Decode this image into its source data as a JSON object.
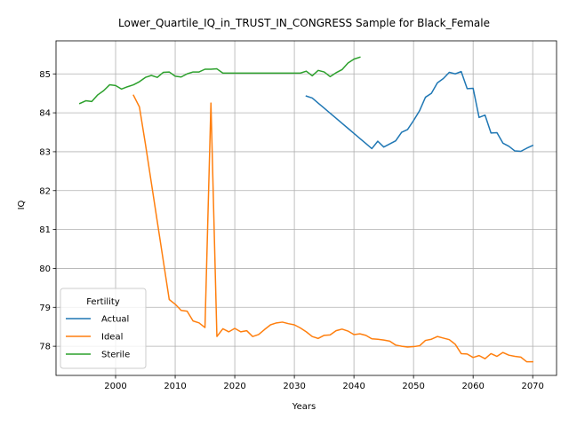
{
  "chart_data": {
    "type": "line",
    "title": "Lower_Quartile_IQ_in_TRUST_IN_CONGRESS Sample for Black_Female",
    "xlabel": "Years",
    "ylabel": "IQ",
    "xlim": [
      1990,
      2074
    ],
    "ylim": [
      77.25,
      85.85
    ],
    "xticks": [
      2000,
      2010,
      2020,
      2030,
      2040,
      2050,
      2060,
      2070
    ],
    "yticks": [
      78,
      79,
      80,
      81,
      82,
      83,
      84,
      85
    ],
    "grid": true,
    "legend": {
      "title": "Fertility",
      "placement": "lower-left"
    },
    "series": [
      {
        "name": "Actual",
        "color": "#1f77b4",
        "x": [
          2032,
          2033,
          2034,
          2035,
          2036,
          2037,
          2038,
          2039,
          2040,
          2041,
          2042,
          2043,
          2044,
          2045,
          2046,
          2047,
          2048,
          2049,
          2050,
          2051,
          2052,
          2053,
          2054,
          2055,
          2056,
          2057,
          2058,
          2059,
          2060,
          2061,
          2062,
          2063,
          2064,
          2065,
          2066,
          2067,
          2068,
          2069,
          2070
        ],
        "y": [
          84.43,
          84.38,
          84.25,
          84.12,
          83.99,
          83.86,
          83.73,
          83.6,
          83.47,
          83.34,
          83.21,
          83.08,
          83.27,
          83.12,
          83.2,
          83.28,
          83.5,
          83.57,
          83.8,
          84.05,
          84.4,
          84.5,
          84.77,
          84.88,
          85.04,
          85.0,
          85.06,
          84.62,
          84.63,
          83.88,
          83.94,
          83.48,
          83.49,
          83.22,
          83.14,
          83.02,
          83.01,
          83.09,
          83.16
        ]
      },
      {
        "name": "Ideal",
        "color": "#ff7f0e",
        "x": [
          2003,
          2004,
          2005,
          2006,
          2007,
          2008,
          2009,
          2010,
          2011,
          2012,
          2013,
          2014,
          2015,
          2016,
          2017,
          2018,
          2019,
          2020,
          2021,
          2022,
          2023,
          2024,
          2025,
          2026,
          2027,
          2028,
          2029,
          2030,
          2031,
          2032,
          2033,
          2034,
          2035,
          2036,
          2037,
          2038,
          2039,
          2040,
          2041,
          2042,
          2043,
          2044,
          2045,
          2046,
          2047,
          2048,
          2049,
          2050,
          2051,
          2052,
          2053,
          2054,
          2055,
          2056,
          2057,
          2058,
          2059,
          2060,
          2061,
          2062,
          2063,
          2064,
          2065,
          2066,
          2067,
          2068,
          2069,
          2070
        ],
        "y": [
          84.45,
          84.15,
          83.2,
          82.2,
          81.2,
          80.2,
          79.2,
          79.08,
          78.92,
          78.9,
          78.65,
          78.6,
          78.48,
          84.25,
          78.25,
          78.45,
          78.37,
          78.46,
          78.37,
          78.4,
          78.25,
          78.3,
          78.43,
          78.55,
          78.6,
          78.62,
          78.58,
          78.55,
          78.47,
          78.37,
          78.25,
          78.2,
          78.28,
          78.29,
          78.4,
          78.44,
          78.39,
          78.3,
          78.32,
          78.28,
          78.19,
          78.18,
          78.16,
          78.13,
          78.03,
          78.0,
          77.98,
          77.99,
          78.01,
          78.15,
          78.18,
          78.25,
          78.21,
          78.17,
          78.05,
          77.81,
          77.8,
          77.71,
          77.76,
          77.68,
          77.81,
          77.74,
          77.84,
          77.77,
          77.74,
          77.72,
          77.6,
          77.6
        ]
      },
      {
        "name": "Sterile",
        "color": "#2ca02c",
        "x": [
          1994,
          1995,
          1996,
          1997,
          1998,
          1999,
          2000,
          2001,
          2002,
          2003,
          2004,
          2005,
          2006,
          2007,
          2008,
          2009,
          2010,
          2011,
          2012,
          2013,
          2014,
          2015,
          2016,
          2017,
          2018,
          2019,
          2020,
          2021,
          2022,
          2023,
          2024,
          2025,
          2026,
          2027,
          2028,
          2029,
          2030,
          2031,
          2032,
          2033,
          2034,
          2035,
          2036,
          2037,
          2038,
          2039,
          2040,
          2041
        ],
        "y": [
          84.24,
          84.31,
          84.29,
          84.46,
          84.57,
          84.72,
          84.7,
          84.61,
          84.67,
          84.72,
          84.8,
          84.91,
          84.96,
          84.91,
          85.04,
          85.05,
          84.94,
          84.92,
          85.0,
          85.05,
          85.05,
          85.12,
          85.12,
          85.13,
          85.02,
          85.02,
          85.02,
          85.02,
          85.02,
          85.02,
          85.02,
          85.02,
          85.02,
          85.02,
          85.02,
          85.02,
          85.02,
          85.02,
          85.07,
          84.95,
          85.09,
          85.05,
          84.93,
          85.03,
          85.11,
          85.28,
          85.38,
          85.43
        ]
      }
    ]
  }
}
